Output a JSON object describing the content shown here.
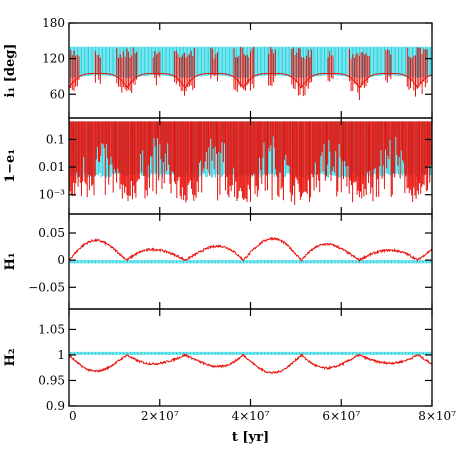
{
  "chart_data": {
    "type": "line",
    "x_axis": {
      "label": "t [yr]",
      "range": [
        0,
        80000000
      ],
      "ticks": [
        {
          "value": 0,
          "label": "0"
        },
        {
          "value": 20000000,
          "label": "2×10⁷"
        },
        {
          "value": 40000000,
          "label": "4×10⁷"
        },
        {
          "value": 60000000,
          "label": "6×10⁷"
        },
        {
          "value": 80000000,
          "label": "8×10⁷"
        }
      ]
    },
    "panels": [
      {
        "ylabel": "i₁ [deg]",
        "yscale": "linear",
        "ylim": [
          20,
          180
        ],
        "yticks": [
          {
            "value": 60,
            "label": "60"
          },
          {
            "value": 120,
            "label": "120"
          },
          {
            "value": 180,
            "label": "180"
          }
        ],
        "series": [
          {
            "color": "#22d3e0",
            "description": "rapid oscillation band",
            "band": [
              92,
              140
            ]
          },
          {
            "color": "#e8120c",
            "description": "secular envelope with spikes",
            "band": [
              45,
              140
            ]
          }
        ]
      },
      {
        "ylabel": "1−e₁",
        "yscale": "log",
        "ylim": [
          0.0002,
          0.6
        ],
        "yticks": [
          {
            "value": 0.001,
            "label": "10⁻³"
          },
          {
            "value": 0.01,
            "label": "0.01"
          },
          {
            "value": 0.1,
            "label": "0.1"
          }
        ],
        "series": [
          {
            "color": "#22d3e0",
            "band": [
              0.004,
              0.45
            ]
          },
          {
            "color": "#e8120c",
            "band": [
              0.0003,
              0.45
            ]
          }
        ]
      },
      {
        "ylabel": "H₁",
        "yscale": "linear",
        "ylim": [
          -0.09,
          0.085
        ],
        "yticks": [
          {
            "value": -0.05,
            "label": "−0.05"
          },
          {
            "value": 0,
            "label": "0"
          },
          {
            "value": 0.05,
            "label": "0.05"
          }
        ],
        "series": [
          {
            "color": "#22d3e0",
            "band": [
              -0.006,
              0.0
            ]
          },
          {
            "color": "#e8120c",
            "amplitude": 0.04,
            "period": 12800000
          }
        ]
      },
      {
        "ylabel": "H₂",
        "yscale": "linear",
        "ylim": [
          0.9,
          1.09
        ],
        "yticks": [
          {
            "value": 0.9,
            "label": "0.9"
          },
          {
            "value": 0.95,
            "label": "0.95"
          },
          {
            "value": 1,
            "label": "1"
          },
          {
            "value": 1.05,
            "label": "1.05"
          }
        ],
        "series": [
          {
            "color": "#22d3e0",
            "band": [
              1.0,
              1.006
            ]
          },
          {
            "color": "#e8120c",
            "amplitude": 0.035,
            "period": 12800000
          }
        ]
      }
    ]
  }
}
